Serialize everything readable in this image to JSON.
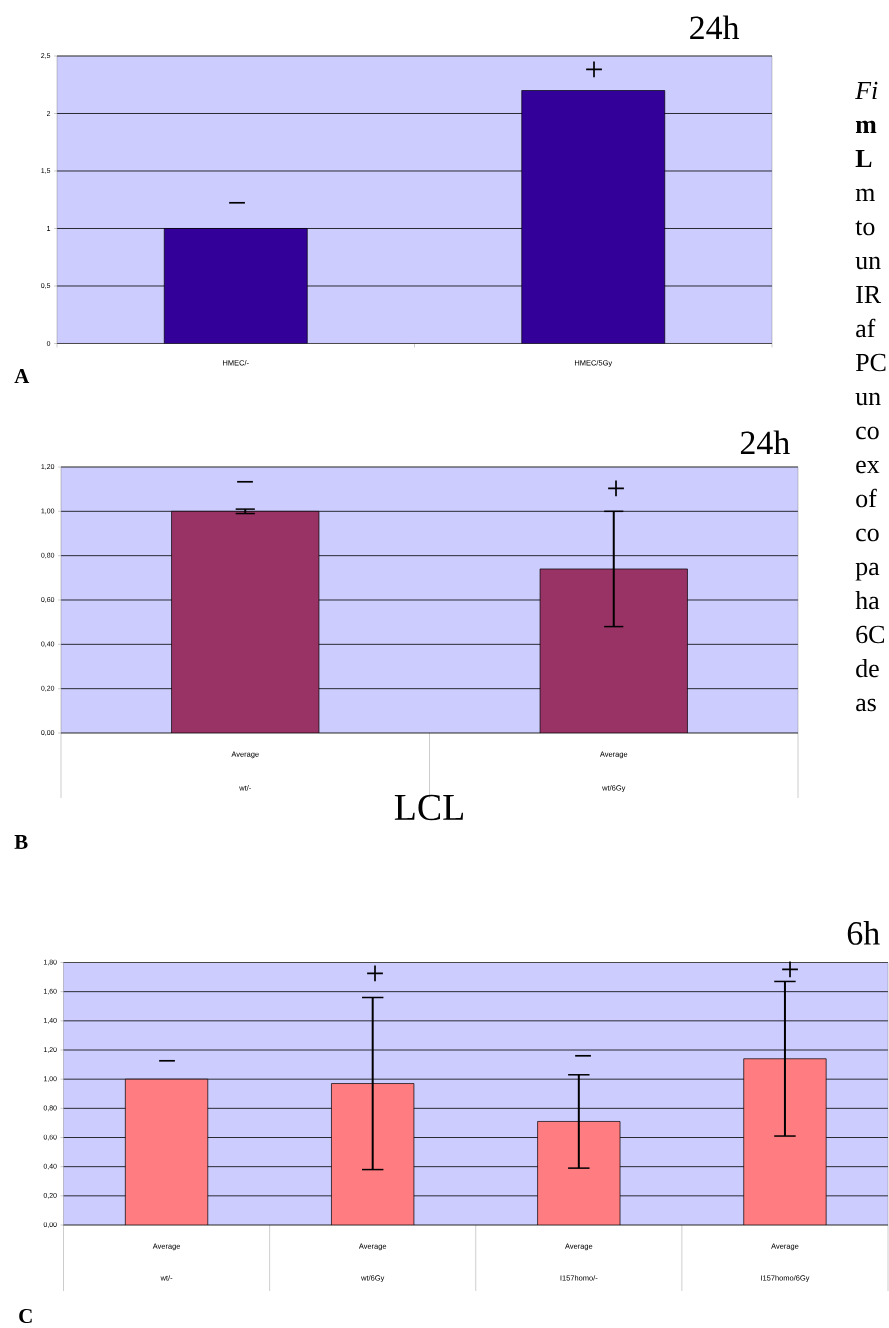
{
  "chart_data": [
    {
      "type": "bar",
      "title": "24h",
      "categories": [
        "HMEC/-",
        "HMEC/5Gy"
      ],
      "values": [
        1,
        2.2
      ],
      "color": "#330099",
      "ylim": [
        0,
        2.5
      ],
      "yticks": [
        0,
        {
          "value": 0.5,
          "label": "0,5"
        },
        1,
        {
          "value": 1.5,
          "label": "1,5"
        },
        2,
        {
          "value": 2.5,
          "label": "2,5"
        }
      ],
      "grid": "y",
      "annotations": [
        "A",
        "*Fi*",
        "**m**",
        "**L**",
        "m",
        "to",
        "un",
        "IR",
        "af",
        "PC",
        "un",
        "co",
        "ex",
        "of",
        "co",
        "pa",
        "ha",
        "6C",
        "de",
        "as",
        "−",
        "+"
      ]
    },
    {
      "type": "bar",
      "title": "24h",
      "xlabel": "LCL",
      "categories": [
        "Average wt/-",
        "Average wt/6Gy"
      ],
      "values": [
        1.0,
        0.74
      ],
      "errors": [
        0.01,
        0.26
      ],
      "color": "#993366",
      "ylim": [
        0,
        1.2
      ],
      "yticks": [
        {
          "value": 0,
          "label": "0,00"
        },
        {
          "value": 0.2,
          "label": "0,20"
        },
        {
          "value": 0.4,
          "label": "0,40"
        },
        {
          "value": 0.6,
          "label": "0,60"
        },
        {
          "value": 0.8,
          "label": "0,80"
        },
        {
          "value": 1.0,
          "label": "1,00"
        },
        {
          "value": 1.2,
          "label": "1,20"
        }
      ],
      "grid": "y",
      "annotations": [
        "B",
        "−",
        "+"
      ]
    },
    {
      "type": "bar",
      "title": "6h",
      "categories": [
        "Average wt/-",
        "Average wt/6Gy",
        "Average I157homo/-",
        "Average I157homo/6Gy"
      ],
      "values": [
        1.0,
        0.97,
        0.71,
        1.14
      ],
      "errors": [
        null,
        0.59,
        0.32,
        0.53
      ],
      "color": "#ff7c80",
      "ylim": [
        0,
        1.8
      ],
      "yticks": [
        {
          "value": 0,
          "label": "0,00"
        },
        {
          "value": 0.2,
          "label": "0,20"
        },
        {
          "value": 0.4,
          "label": "0,40"
        },
        {
          "value": 0.6,
          "label": "0,60"
        },
        {
          "value": 0.8,
          "label": "0,80"
        },
        {
          "value": 1.0,
          "label": "1,00"
        },
        {
          "value": 1.2,
          "label": "1,20"
        },
        {
          "value": 1.4,
          "label": "1,40"
        },
        {
          "value": 1.6,
          "label": "1,60"
        },
        {
          "value": 1.8,
          "label": "1,80"
        }
      ],
      "grid": "y",
      "annotations": [
        "C",
        "−",
        "+",
        "−",
        "+"
      ]
    }
  ]
}
